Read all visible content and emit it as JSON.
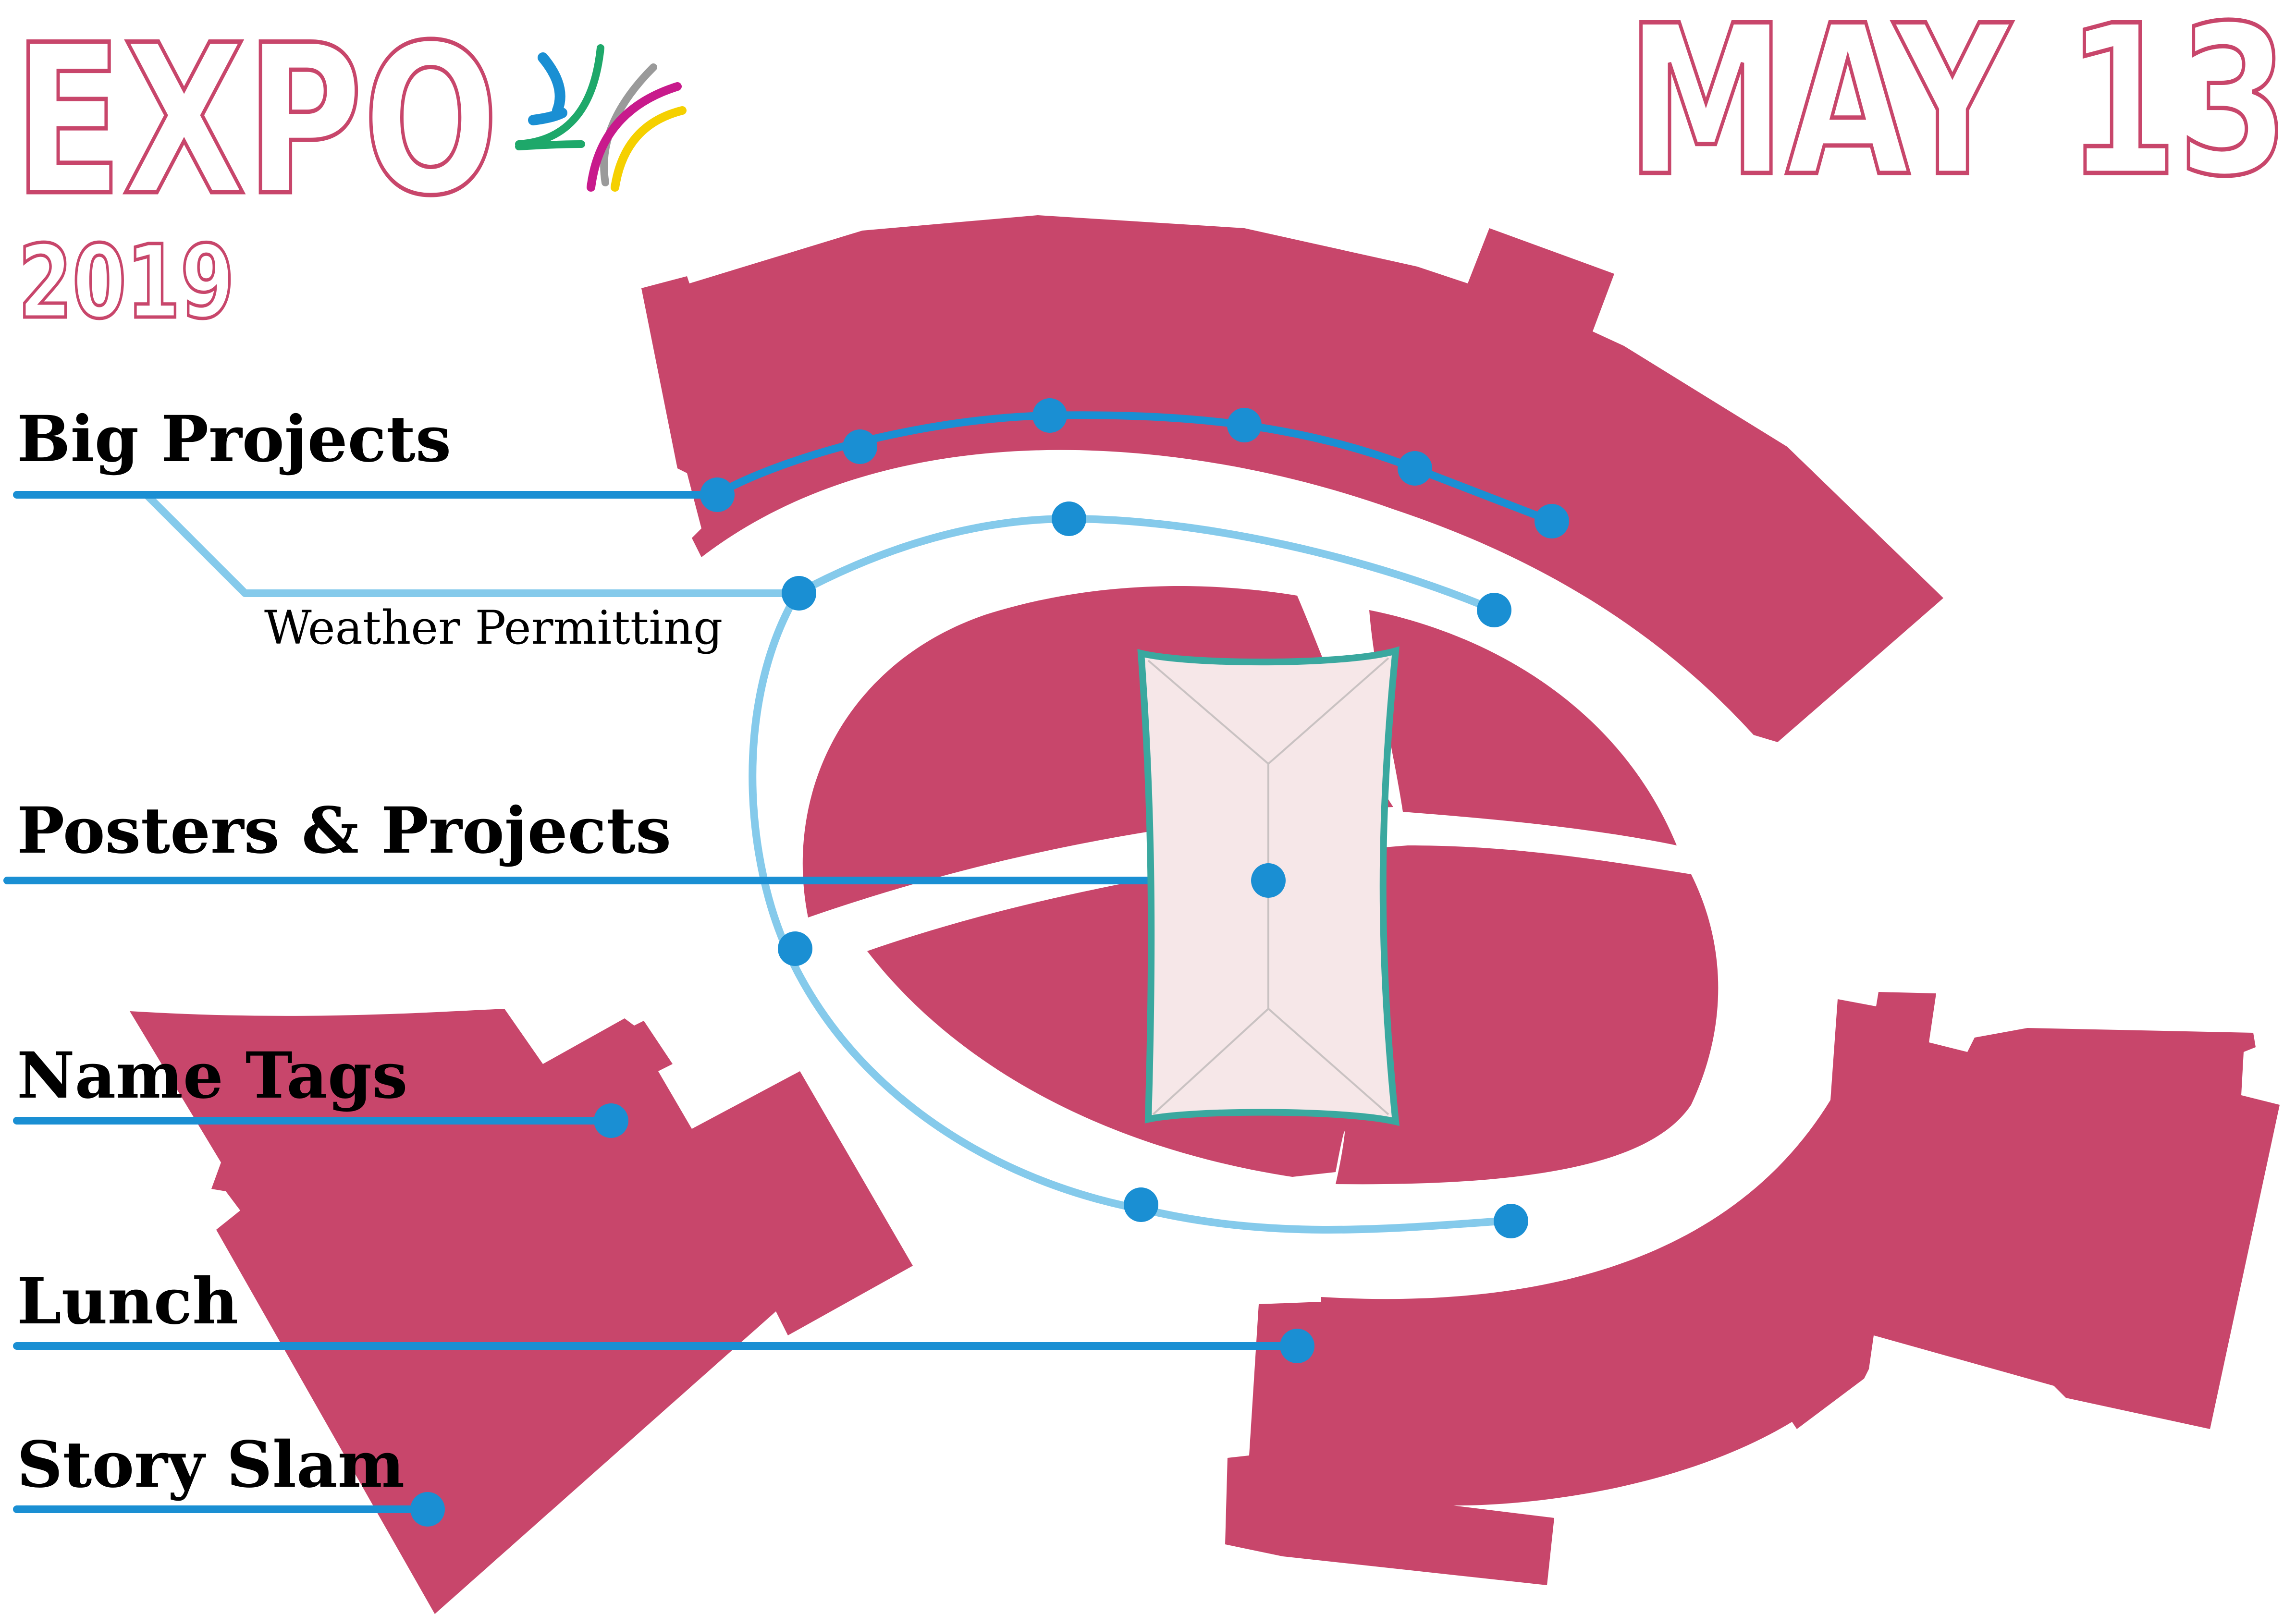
{
  "header": {
    "title": "EXPO",
    "year": "2019",
    "date": "MAY 13"
  },
  "colors": {
    "building": "#c8466b",
    "route_primary": "#1a8fd3",
    "route_secondary": "#85caeb",
    "tent_outline": "#3aa89f",
    "tent_fill": "#f6e7e8",
    "logo_blue": "#1a8fd3",
    "logo_green": "#1ea86a",
    "logo_magenta": "#c81a8c",
    "logo_yellow": "#f5d000",
    "logo_gray": "#9a9a9a"
  },
  "legend": {
    "items": [
      {
        "label": "Big Projects",
        "sublabel": "Weather Permitting"
      },
      {
        "label": "Posters & Projects"
      },
      {
        "label": "Name Tags"
      },
      {
        "label": "Lunch"
      },
      {
        "label": "Story Slam"
      }
    ]
  },
  "icons": {
    "logo": "expo-burst-logo-icon",
    "stop_marker": "dot-icon"
  }
}
